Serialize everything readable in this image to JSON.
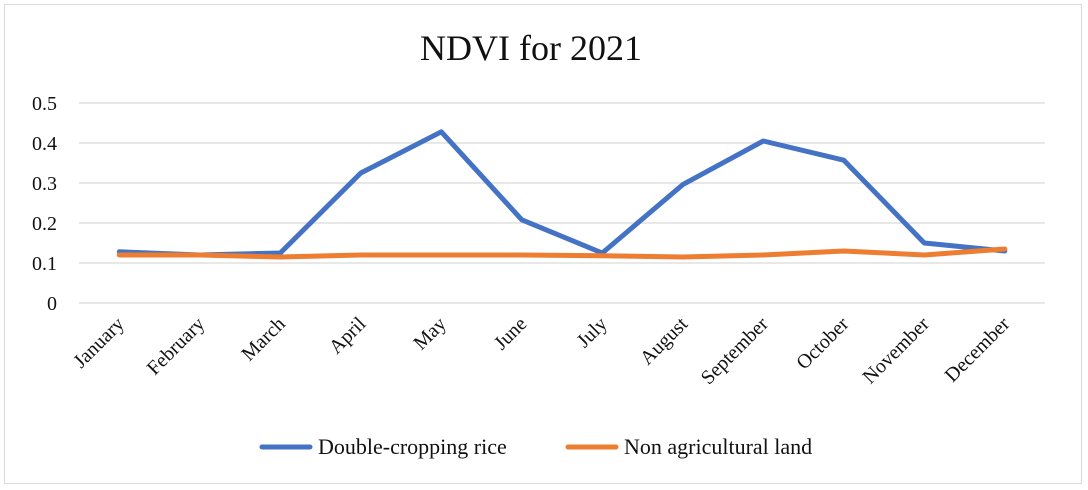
{
  "chart_data": {
    "type": "line",
    "title": "NDVI for 2021",
    "xlabel": "",
    "ylabel": "",
    "categories": [
      "January",
      "February",
      "March",
      "April",
      "May",
      "June",
      "July",
      "August",
      "September",
      "October",
      "November",
      "December"
    ],
    "yticks": [
      "0",
      "0.1",
      "0.2",
      "0.3",
      "0.4",
      "0.5"
    ],
    "ylim": [
      0,
      0.5
    ],
    "grid": true,
    "legend_position": "bottom",
    "series": [
      {
        "name": "Double-cropping rice",
        "color": "#4472c4",
        "values": [
          0.128,
          0.12,
          0.125,
          0.325,
          0.428,
          0.208,
          0.125,
          0.296,
          0.405,
          0.357,
          0.15,
          0.13
        ]
      },
      {
        "name": "Non agricultural land",
        "color": "#ed7d31",
        "values": [
          0.12,
          0.12,
          0.115,
          0.12,
          0.12,
          0.12,
          0.118,
          0.115,
          0.12,
          0.13,
          0.12,
          0.135
        ]
      }
    ]
  }
}
